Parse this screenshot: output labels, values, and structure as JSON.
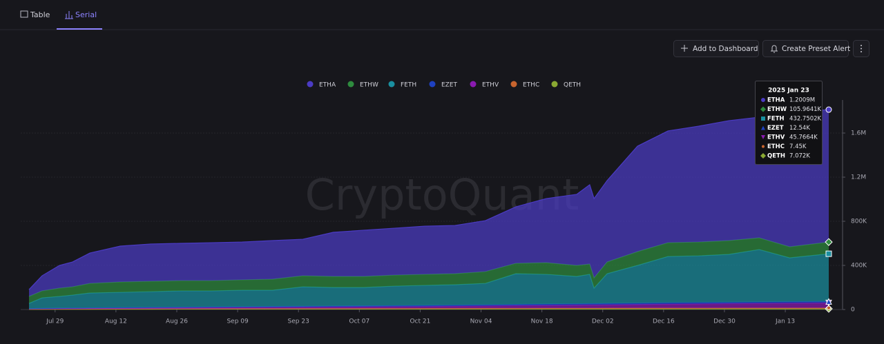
{
  "ui": {
    "tabs": [
      "Table",
      "Serial"
    ],
    "buttons": [
      "Add to Dashboard",
      "Create Preset Alert"
    ],
    "watermark": "CryptoQuant"
  },
  "chart_data": {
    "type": "stacked-area",
    "x": [
      0,
      3,
      7,
      10,
      14,
      21,
      28,
      35,
      42,
      49,
      56,
      63,
      70,
      77,
      84,
      91,
      98,
      105,
      112,
      119,
      126,
      129,
      130,
      133,
      140,
      147,
      154,
      161,
      168,
      175,
      184
    ],
    "xlim": [
      0,
      184
    ],
    "xticks": [
      {
        "value": 6,
        "label": "Jul 29"
      },
      {
        "value": 20,
        "label": "Aug 12"
      },
      {
        "value": 34,
        "label": "Aug 26"
      },
      {
        "value": 48,
        "label": "Sep 09"
      },
      {
        "value": 62,
        "label": "Sep 23"
      },
      {
        "value": 76,
        "label": "Oct 07"
      },
      {
        "value": 90,
        "label": "Oct 21"
      },
      {
        "value": 104,
        "label": "Nov 04"
      },
      {
        "value": 118,
        "label": "Nov 18"
      },
      {
        "value": 132,
        "label": "Dec 02"
      },
      {
        "value": 146,
        "label": "Dec 16"
      },
      {
        "value": 160,
        "label": "Dec 30"
      },
      {
        "value": 174,
        "label": "Jan 13"
      }
    ],
    "ylim": [
      0,
      1900000
    ],
    "yticks": [
      0,
      {
        "value": 400000,
        "label": "400K"
      },
      {
        "value": 800000,
        "label": "800K"
      },
      {
        "value": 1200000,
        "label": "1.2M"
      },
      {
        "value": 1600000,
        "label": "1.6M"
      }
    ],
    "grid": true,
    "series": [
      {
        "name": "ETHA",
        "color": "#4b3bc4",
        "marker": "circle",
        "values": [
          62000,
          137000,
          206000,
          225000,
          275000,
          325000,
          338000,
          338000,
          344000,
          343000,
          350000,
          331000,
          400000,
          419000,
          425000,
          437000,
          437000,
          462000,
          512000,
          581000,
          644000,
          719000,
          719000,
          738000,
          956000,
          1013000,
          1050000,
          1087000,
          1094000,
          1218000,
          1200900
        ]
      },
      {
        "name": "ETHW",
        "color": "#2e8b3e",
        "marker": "diamond",
        "values": [
          63000,
          63000,
          75000,
          75000,
          87000,
          94000,
          94000,
          93000,
          93000,
          94000,
          100000,
          100000,
          100000,
          100000,
          100000,
          100000,
          100000,
          107000,
          94000,
          106000,
          100000,
          93000,
          93000,
          106000,
          125000,
          125000,
          125000,
          125000,
          106000,
          100000,
          105964.1
        ]
      },
      {
        "name": "FETH",
        "color": "#1a8fa0",
        "marker": "square",
        "values": [
          47800,
          95700,
          106400,
          117200,
          134900,
          138700,
          142700,
          147600,
          145600,
          149700,
          147800,
          176900,
          169000,
          167100,
          177200,
          182300,
          185400,
          194500,
          278600,
          269700,
          248100,
          265700,
          140700,
          270400,
          342000,
          419600,
          423300,
          434000,
          475700,
          398400,
          432750.2
        ]
      },
      {
        "name": "EZET",
        "color": "#1e40c0",
        "marker": "triangle",
        "values": [
          2000,
          2500,
          3000,
          3300,
          3600,
          4000,
          4500,
          5000,
          5500,
          6000,
          6500,
          7000,
          7500,
          8000,
          8500,
          9000,
          9500,
          10000,
          10500,
          11000,
          11300,
          11500,
          11500,
          11600,
          11800,
          12000,
          12100,
          12200,
          12300,
          12400,
          12540
        ]
      },
      {
        "name": "ETHV",
        "color": "#8a1ab0",
        "marker": "triangle-down",
        "values": [
          3000,
          4000,
          5000,
          5500,
          6000,
          7000,
          8000,
          9000,
          10000,
          11000,
          12000,
          13000,
          14000,
          15000,
          16000,
          17000,
          19000,
          21000,
          24000,
          26000,
          28000,
          29000,
          29000,
          30000,
          33000,
          36000,
          38000,
          40000,
          42000,
          44000,
          45766.4
        ]
      },
      {
        "name": "ETHC",
        "color": "#c8642e",
        "marker": "dot",
        "values": [
          2000,
          2300,
          2600,
          2800,
          3000,
          3300,
          3600,
          3900,
          4100,
          4300,
          4500,
          4700,
          4900,
          5100,
          5300,
          5500,
          5700,
          5900,
          6100,
          6300,
          6500,
          6600,
          6600,
          6700,
          6800,
          6900,
          7000,
          7100,
          7200,
          7300,
          7450
        ]
      },
      {
        "name": "QETH",
        "color": "#8aa832",
        "marker": "diamond",
        "values": [
          1200,
          1500,
          2000,
          2200,
          2500,
          3000,
          3200,
          3500,
          3800,
          4000,
          4200,
          4400,
          4600,
          4800,
          5000,
          5200,
          5400,
          5600,
          5800,
          6000,
          6100,
          6200,
          6200,
          6300,
          6400,
          6500,
          6600,
          6700,
          6800,
          6900,
          7072
        ]
      }
    ],
    "tooltip": {
      "title": "2025 Jan 23",
      "labels": [
        "1.2009M",
        "105.9641K",
        "432.7502K",
        "12.54K",
        "45.7664K",
        "7.45K",
        "7.072K"
      ]
    }
  }
}
